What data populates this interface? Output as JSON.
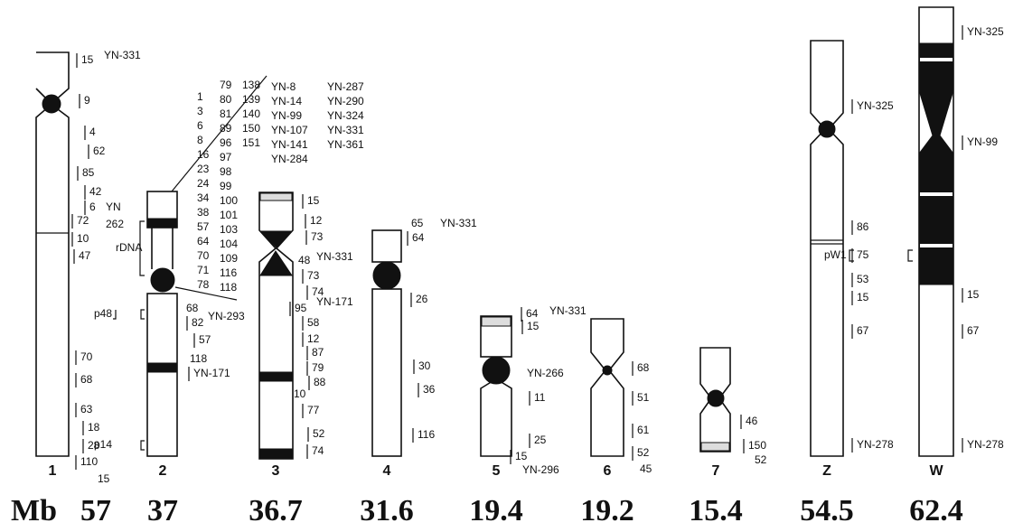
{
  "size_unit": "Mb",
  "chromosomes": [
    {
      "name": "1",
      "size": "57",
      "labels": [
        "15",
        "YN-331",
        "9",
        "4",
        "62",
        "85",
        "42",
        "6",
        "YN",
        "72",
        "262",
        "10",
        "47",
        "70",
        "68",
        "63",
        "18",
        "28",
        "110",
        "15"
      ]
    },
    {
      "name": "2",
      "size": "37",
      "labels": [
        "rDNA",
        "p48",
        "p14",
        "68",
        "YN-293",
        "82",
        "57",
        "118",
        "YN-171"
      ]
    },
    {
      "name": "3",
      "size": "36.7",
      "labels": [
        "15",
        "12",
        "73",
        "48",
        "YN-331",
        "73",
        "74",
        "YN-171",
        "95",
        "58",
        "12",
        "87",
        "79",
        "10",
        "88",
        "77",
        "52",
        "74"
      ]
    },
    {
      "name": "4",
      "size": "31.6",
      "labels": [
        "65",
        "YN-331",
        "64",
        "26",
        "30",
        "36",
        "116"
      ]
    },
    {
      "name": "5",
      "size": "19.4",
      "labels": [
        "64",
        "YN-331",
        "15",
        "YN-266",
        "11",
        "25",
        "15",
        "YN-296"
      ]
    },
    {
      "name": "6",
      "size": "19.2",
      "labels": [
        "68",
        "51",
        "61",
        "52",
        "45"
      ]
    },
    {
      "name": "7",
      "size": "15.4",
      "labels": [
        "46",
        "150",
        "52"
      ]
    },
    {
      "name": "Z",
      "size": "54.5",
      "labels": [
        "YN-325",
        "86",
        "pW1",
        "75",
        "53",
        "15",
        "67",
        "YN-278"
      ]
    },
    {
      "name": "W",
      "size": "62.4",
      "labels": [
        "YN-325",
        "YN-99",
        "15",
        "67",
        "YN-278"
      ]
    }
  ],
  "rdna_list": {
    "columns": [
      [
        "1",
        "3",
        "6",
        "8",
        "16",
        "23",
        "24",
        "34",
        "38",
        "57",
        "64",
        "70",
        "71",
        "78"
      ],
      [
        "79",
        "80",
        "81",
        "89",
        "96",
        "97",
        "98",
        "99",
        "100",
        "101",
        "103",
        "104",
        "109",
        "116",
        "118"
      ],
      [
        "138",
        "139",
        "140",
        "150",
        "151"
      ],
      [
        "YN-8",
        "YN-14",
        "YN-99",
        "YN-107",
        "YN-141",
        "YN-284"
      ],
      [
        "YN-287",
        "YN-290",
        "YN-324",
        "YN-331",
        "YN-361"
      ]
    ]
  }
}
